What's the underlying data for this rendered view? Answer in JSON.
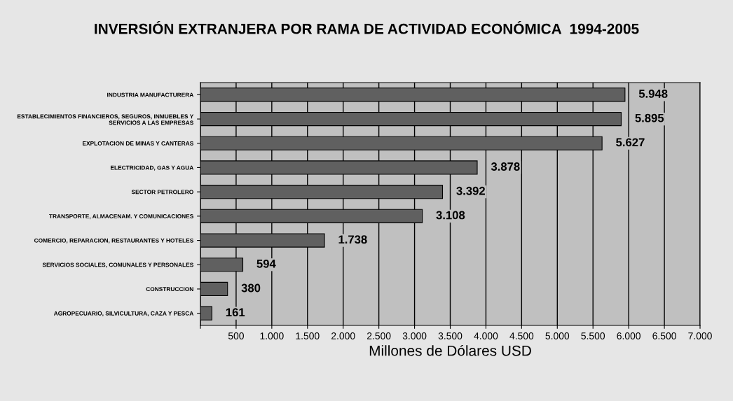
{
  "chart_data": {
    "type": "bar",
    "orientation": "horizontal",
    "title": "INVERSIÓN EXTRANJERA POR RAMA DE ACTIVIDAD ECONÓMICA  1994-2005",
    "xlabel": "Millones de Dólares USD",
    "categories": [
      "INDUSTRIA MANUFACTURERA",
      "ESTABLECIMIENTOS FINANCIEROS, SEGUROS, INMUEBLES Y\nSERVICIOS A LAS EMPRESAS",
      "EXPLOTACION DE MINAS Y CANTERAS",
      "ELECTRICIDAD, GAS Y AGUA",
      "SECTOR PETROLERO",
      "TRANSPORTE, ALMACENAM. Y COMUNICACIONES",
      "COMERCIO, REPARACION, RESTAURANTES Y HOTELES",
      "SERVICIOS SOCIALES, COMUNALES Y PERSONALES",
      "CONSTRUCCION",
      "AGROPECUARIO, SILVICULTURA, CAZA Y PESCA"
    ],
    "values": [
      5948,
      5895,
      5627,
      3878,
      3392,
      3108,
      1738,
      594,
      380,
      161
    ],
    "value_labels": [
      "5.948",
      "5.895",
      "5.627",
      "3.878",
      "3.392",
      "3.108",
      "1.738",
      "594",
      "380",
      "161"
    ],
    "color": "#606060",
    "xlim": [
      0,
      7000
    ],
    "xticks": [
      {
        "value": 0,
        "label": null
      },
      500,
      {
        "value": 1000,
        "label": "1.000"
      },
      {
        "value": 1500,
        "label": "1.500"
      },
      {
        "value": 2000,
        "label": "2.000"
      },
      {
        "value": 2500,
        "label": "2.500"
      },
      {
        "value": 3000,
        "label": "3.000"
      },
      {
        "value": 3500,
        "label": "3.500"
      },
      {
        "value": 4000,
        "label": "4.000"
      },
      {
        "value": 4500,
        "label": "4.500"
      },
      {
        "value": 5000,
        "label": "5.000"
      },
      {
        "value": 5500,
        "label": "5.500"
      },
      {
        "value": 6000,
        "label": "6.000"
      },
      {
        "value": 6500,
        "label": "6.500"
      },
      {
        "value": 7000,
        "label": "7.000"
      }
    ],
    "grid": "x",
    "legend": false
  }
}
